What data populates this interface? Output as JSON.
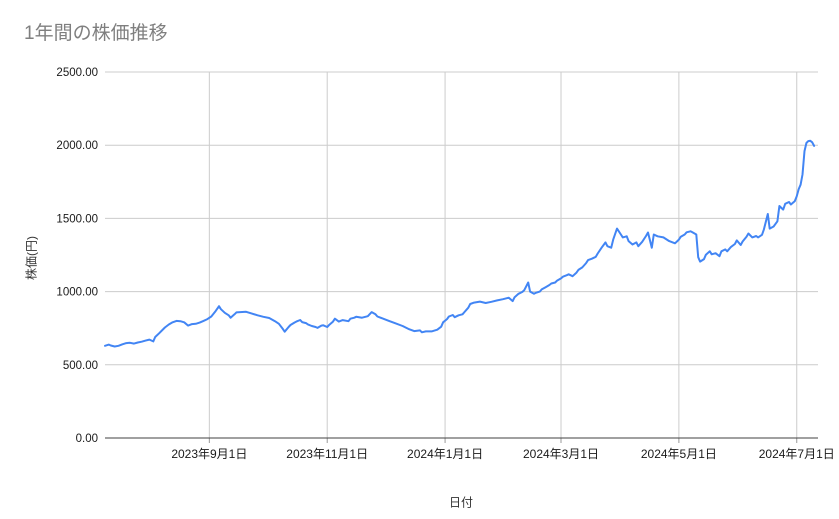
{
  "page": {
    "background": "#ffffff"
  },
  "chart_data": {
    "type": "line",
    "title": "1年間の株価推移",
    "xlabel": "日付",
    "ylabel": "株価(円)",
    "ylim": [
      0,
      2500
    ],
    "x_domain": [
      "2023-07-09",
      "2024-07-12"
    ],
    "grid": true,
    "legend_position": "none",
    "line_color": "#4285f4",
    "title_color": "#7f7f7f",
    "grid_color": "#cccccc",
    "axis_line_color": "#424242",
    "tick_mark_color": "#999999",
    "tick_label_color": "#1a1a1a",
    "y_ticks": [
      {
        "value": 0,
        "label": "0.00"
      },
      {
        "value": 500,
        "label": "500.00"
      },
      {
        "value": 1000,
        "label": "1000.00"
      },
      {
        "value": 1500,
        "label": "1500.00"
      },
      {
        "value": 2000,
        "label": "2000.00"
      },
      {
        "value": 2500,
        "label": "2500.00"
      }
    ],
    "x_ticks": [
      {
        "date": "2023-09-01",
        "label": "2023年9月1日"
      },
      {
        "date": "2023-11-01",
        "label": "2023年11月1日"
      },
      {
        "date": "2024-01-01",
        "label": "2024年1月1日"
      },
      {
        "date": "2024-03-01",
        "label": "2024年3月1日"
      },
      {
        "date": "2024-05-01",
        "label": "2024年5月1日"
      },
      {
        "date": "2024-07-01",
        "label": "2024年7月1日"
      }
    ],
    "series": [
      {
        "name": "株価",
        "points": [
          [
            "2023-07-09",
            630
          ],
          [
            "2023-07-11",
            638
          ],
          [
            "2023-07-12",
            632
          ],
          [
            "2023-07-14",
            625
          ],
          [
            "2023-07-16",
            630
          ],
          [
            "2023-07-18",
            640
          ],
          [
            "2023-07-20",
            648
          ],
          [
            "2023-07-22",
            650
          ],
          [
            "2023-07-24",
            645
          ],
          [
            "2023-07-26",
            652
          ],
          [
            "2023-07-28",
            658
          ],
          [
            "2023-07-30",
            665
          ],
          [
            "2023-08-01",
            672
          ],
          [
            "2023-08-03",
            660
          ],
          [
            "2023-08-04",
            690
          ],
          [
            "2023-08-06",
            715
          ],
          [
            "2023-08-09",
            755
          ],
          [
            "2023-08-11",
            775
          ],
          [
            "2023-08-13",
            790
          ],
          [
            "2023-08-15",
            800
          ],
          [
            "2023-08-17",
            798
          ],
          [
            "2023-08-19",
            790
          ],
          [
            "2023-08-21",
            768
          ],
          [
            "2023-08-23",
            778
          ],
          [
            "2023-08-25",
            780
          ],
          [
            "2023-08-27",
            788
          ],
          [
            "2023-08-29",
            800
          ],
          [
            "2023-08-31",
            812
          ],
          [
            "2023-09-02",
            830
          ],
          [
            "2023-09-04",
            862
          ],
          [
            "2023-09-06",
            900
          ],
          [
            "2023-09-07",
            880
          ],
          [
            "2023-09-09",
            855
          ],
          [
            "2023-09-11",
            838
          ],
          [
            "2023-09-12",
            822
          ],
          [
            "2023-09-14",
            845
          ],
          [
            "2023-09-15",
            858
          ],
          [
            "2023-09-17",
            860
          ],
          [
            "2023-09-20",
            862
          ],
          [
            "2023-09-23",
            850
          ],
          [
            "2023-09-26",
            838
          ],
          [
            "2023-09-29",
            828
          ],
          [
            "2023-10-02",
            820
          ],
          [
            "2023-10-05",
            798
          ],
          [
            "2023-10-07",
            780
          ],
          [
            "2023-10-09",
            745
          ],
          [
            "2023-10-10",
            726
          ],
          [
            "2023-10-12",
            758
          ],
          [
            "2023-10-13",
            772
          ],
          [
            "2023-10-15",
            788
          ],
          [
            "2023-10-16",
            795
          ],
          [
            "2023-10-18",
            806
          ],
          [
            "2023-10-19",
            792
          ],
          [
            "2023-10-21",
            785
          ],
          [
            "2023-10-22",
            776
          ],
          [
            "2023-10-24",
            765
          ],
          [
            "2023-10-26",
            758
          ],
          [
            "2023-10-27",
            752
          ],
          [
            "2023-10-29",
            768
          ],
          [
            "2023-10-30",
            770
          ],
          [
            "2023-11-01",
            758
          ],
          [
            "2023-11-02",
            772
          ],
          [
            "2023-11-04",
            795
          ],
          [
            "2023-11-05",
            815
          ],
          [
            "2023-11-07",
            795
          ],
          [
            "2023-11-09",
            805
          ],
          [
            "2023-11-12",
            798
          ],
          [
            "2023-11-13",
            815
          ],
          [
            "2023-11-15",
            822
          ],
          [
            "2023-11-16",
            828
          ],
          [
            "2023-11-19",
            822
          ],
          [
            "2023-11-22",
            832
          ],
          [
            "2023-11-24",
            860
          ],
          [
            "2023-11-26",
            845
          ],
          [
            "2023-11-27",
            830
          ],
          [
            "2023-11-30",
            815
          ],
          [
            "2023-12-03",
            800
          ],
          [
            "2023-12-06",
            785
          ],
          [
            "2023-12-10",
            765
          ],
          [
            "2023-12-13",
            745
          ],
          [
            "2023-12-16",
            730
          ],
          [
            "2023-12-19",
            735
          ],
          [
            "2023-12-20",
            722
          ],
          [
            "2023-12-22",
            728
          ],
          [
            "2023-12-25",
            728
          ],
          [
            "2023-12-28",
            740
          ],
          [
            "2023-12-30",
            760
          ],
          [
            "2023-12-31",
            790
          ],
          [
            "2024-01-02",
            812
          ],
          [
            "2024-01-03",
            830
          ],
          [
            "2024-01-05",
            840
          ],
          [
            "2024-01-06",
            825
          ],
          [
            "2024-01-08",
            838
          ],
          [
            "2024-01-10",
            845
          ],
          [
            "2024-01-11",
            860
          ],
          [
            "2024-01-13",
            890
          ],
          [
            "2024-01-14",
            915
          ],
          [
            "2024-01-16",
            925
          ],
          [
            "2024-01-19",
            932
          ],
          [
            "2024-01-22",
            922
          ],
          [
            "2024-01-25",
            930
          ],
          [
            "2024-01-28",
            940
          ],
          [
            "2024-01-31",
            948
          ],
          [
            "2024-02-03",
            958
          ],
          [
            "2024-02-05",
            935
          ],
          [
            "2024-02-06",
            962
          ],
          [
            "2024-02-08",
            985
          ],
          [
            "2024-02-10",
            998
          ],
          [
            "2024-02-11",
            1010
          ],
          [
            "2024-02-13",
            1062
          ],
          [
            "2024-02-14",
            1000
          ],
          [
            "2024-02-16",
            985
          ],
          [
            "2024-02-17",
            992
          ],
          [
            "2024-02-19",
            1000
          ],
          [
            "2024-02-20",
            1015
          ],
          [
            "2024-02-22",
            1030
          ],
          [
            "2024-02-24",
            1045
          ],
          [
            "2024-02-25",
            1055
          ],
          [
            "2024-02-27",
            1062
          ],
          [
            "2024-02-28",
            1075
          ],
          [
            "2024-03-01",
            1090
          ],
          [
            "2024-03-02",
            1102
          ],
          [
            "2024-03-04",
            1112
          ],
          [
            "2024-03-05",
            1118
          ],
          [
            "2024-03-07",
            1105
          ],
          [
            "2024-03-09",
            1130
          ],
          [
            "2024-03-10",
            1148
          ],
          [
            "2024-03-12",
            1165
          ],
          [
            "2024-03-14",
            1195
          ],
          [
            "2024-03-15",
            1215
          ],
          [
            "2024-03-17",
            1225
          ],
          [
            "2024-03-19",
            1238
          ],
          [
            "2024-03-20",
            1260
          ],
          [
            "2024-03-22",
            1300
          ],
          [
            "2024-03-24",
            1336
          ],
          [
            "2024-03-25",
            1310
          ],
          [
            "2024-03-27",
            1300
          ],
          [
            "2024-03-28",
            1355
          ],
          [
            "2024-03-30",
            1430
          ],
          [
            "2024-04-01",
            1390
          ],
          [
            "2024-04-02",
            1370
          ],
          [
            "2024-04-04",
            1378
          ],
          [
            "2024-04-05",
            1345
          ],
          [
            "2024-04-07",
            1322
          ],
          [
            "2024-04-09",
            1336
          ],
          [
            "2024-04-10",
            1310
          ],
          [
            "2024-04-12",
            1340
          ],
          [
            "2024-04-14",
            1380
          ],
          [
            "2024-04-15",
            1404
          ],
          [
            "2024-04-17",
            1300
          ],
          [
            "2024-04-18",
            1390
          ],
          [
            "2024-04-20",
            1378
          ],
          [
            "2024-04-23",
            1370
          ],
          [
            "2024-04-26",
            1345
          ],
          [
            "2024-04-29",
            1330
          ],
          [
            "2024-05-01",
            1355
          ],
          [
            "2024-05-02",
            1375
          ],
          [
            "2024-05-04",
            1390
          ],
          [
            "2024-05-05",
            1405
          ],
          [
            "2024-05-07",
            1412
          ],
          [
            "2024-05-08",
            1405
          ],
          [
            "2024-05-10",
            1390
          ],
          [
            "2024-05-11",
            1235
          ],
          [
            "2024-05-12",
            1205
          ],
          [
            "2024-05-14",
            1222
          ],
          [
            "2024-05-15",
            1252
          ],
          [
            "2024-05-17",
            1275
          ],
          [
            "2024-05-18",
            1255
          ],
          [
            "2024-05-20",
            1262
          ],
          [
            "2024-05-22",
            1242
          ],
          [
            "2024-05-23",
            1275
          ],
          [
            "2024-05-25",
            1288
          ],
          [
            "2024-05-26",
            1275
          ],
          [
            "2024-05-28",
            1305
          ],
          [
            "2024-05-30",
            1325
          ],
          [
            "2024-05-31",
            1350
          ],
          [
            "2024-06-02",
            1318
          ],
          [
            "2024-06-03",
            1342
          ],
          [
            "2024-06-05",
            1375
          ],
          [
            "2024-06-06",
            1397
          ],
          [
            "2024-06-08",
            1370
          ],
          [
            "2024-06-10",
            1380
          ],
          [
            "2024-06-11",
            1370
          ],
          [
            "2024-06-13",
            1388
          ],
          [
            "2024-06-14",
            1425
          ],
          [
            "2024-06-16",
            1530
          ],
          [
            "2024-06-17",
            1430
          ],
          [
            "2024-06-19",
            1445
          ],
          [
            "2024-06-21",
            1480
          ],
          [
            "2024-06-22",
            1585
          ],
          [
            "2024-06-24",
            1560
          ],
          [
            "2024-06-25",
            1600
          ],
          [
            "2024-06-27",
            1612
          ],
          [
            "2024-06-28",
            1595
          ],
          [
            "2024-06-30",
            1618
          ],
          [
            "2024-07-01",
            1650
          ],
          [
            "2024-07-02",
            1700
          ],
          [
            "2024-07-03",
            1730
          ],
          [
            "2024-07-04",
            1800
          ],
          [
            "2024-07-05",
            1960
          ],
          [
            "2024-07-06",
            2015
          ],
          [
            "2024-07-07",
            2028
          ],
          [
            "2024-07-08",
            2030
          ],
          [
            "2024-07-09",
            2020
          ],
          [
            "2024-07-10",
            1995
          ]
        ]
      }
    ]
  }
}
